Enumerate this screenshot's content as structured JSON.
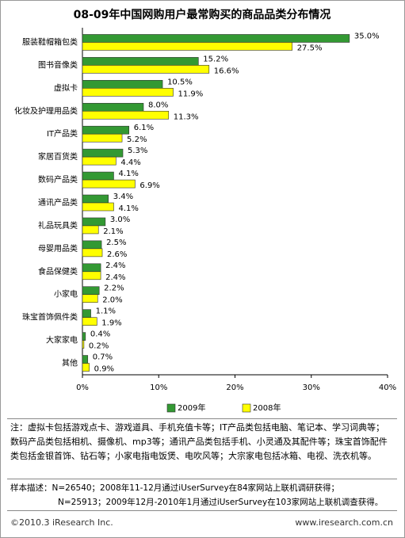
{
  "chart_data": {
    "type": "hbar",
    "title": "08-09年中国网购用户最常购买的商品品类分布情况",
    "categories": [
      "服装鞋帽箱包类",
      "图书音像类",
      "虚拟卡",
      "化妆及护理用品类",
      "IT产品类",
      "家居百货类",
      "数码产品类",
      "通讯产品类",
      "礼品玩具类",
      "母婴用品类",
      "食品保健类",
      "小家电",
      "珠宝首饰佩件类",
      "大家家电",
      "其他"
    ],
    "series": [
      {
        "name": "2009年",
        "color": "#339933",
        "values": [
          35.0,
          15.2,
          10.5,
          8.0,
          6.1,
          5.3,
          4.1,
          3.4,
          3.0,
          2.5,
          2.4,
          2.2,
          1.1,
          0.4,
          0.7
        ],
        "value_labels": [
          "35.0%",
          "15.2%",
          "10.5%",
          "8.0%",
          "6.1%",
          "5.3%",
          "4.1%",
          "3.4%",
          "3.0%",
          "2.5%",
          "2.4%",
          "2.2%",
          "1.1%",
          "0.4%",
          "0.7%"
        ]
      },
      {
        "name": "2008年",
        "color": "#ffff00",
        "values": [
          27.5,
          16.6,
          11.9,
          11.3,
          5.2,
          4.4,
          6.9,
          4.1,
          2.1,
          2.6,
          2.4,
          2.0,
          1.9,
          0.2,
          0.9
        ],
        "value_labels": [
          "27.5%",
          "16.6%",
          "11.9%",
          "11.3%",
          "5.2%",
          "4.4%",
          "6.9%",
          "4.1%",
          "2.1%",
          "2.6%",
          "2.4%",
          "2.0%",
          "1.9%",
          "0.2%",
          "0.9%"
        ]
      }
    ],
    "xlim": [
      0,
      40
    ],
    "xticks": [
      {
        "value": 0,
        "label": "0%"
      },
      {
        "value": 10,
        "label": "10%"
      },
      {
        "value": 20,
        "label": "20%"
      },
      {
        "value": 30,
        "label": "30%"
      },
      {
        "value": 40,
        "label": "40%"
      }
    ]
  },
  "notes": "注：虚拟卡包括游戏点卡、游戏道具、手机充值卡等；IT产品类包括电脑、笔记本、学习词典等；数码产品类包括相机、摄像机、mp3等；通讯产品类包括手机、小灵通及其配件等；珠宝首饰配件类包括金银首饰、钻石等；小家电指电饭煲、电吹风等；大宗家电包括冰箱、电视、洗衣机等。",
  "sample": {
    "label": "样本描述：",
    "lines": [
      "N=26540；2008年11-12月通过iUserSurvey在84家网站上联机调研获得；",
      "N=25913；2009年12月-2010年1月通过iUserSurvey在103家网站上联机调查获得。"
    ]
  },
  "footer": {
    "left": "©2010.3 iResearch Inc.",
    "right": "www.iresearch.com.cn"
  }
}
